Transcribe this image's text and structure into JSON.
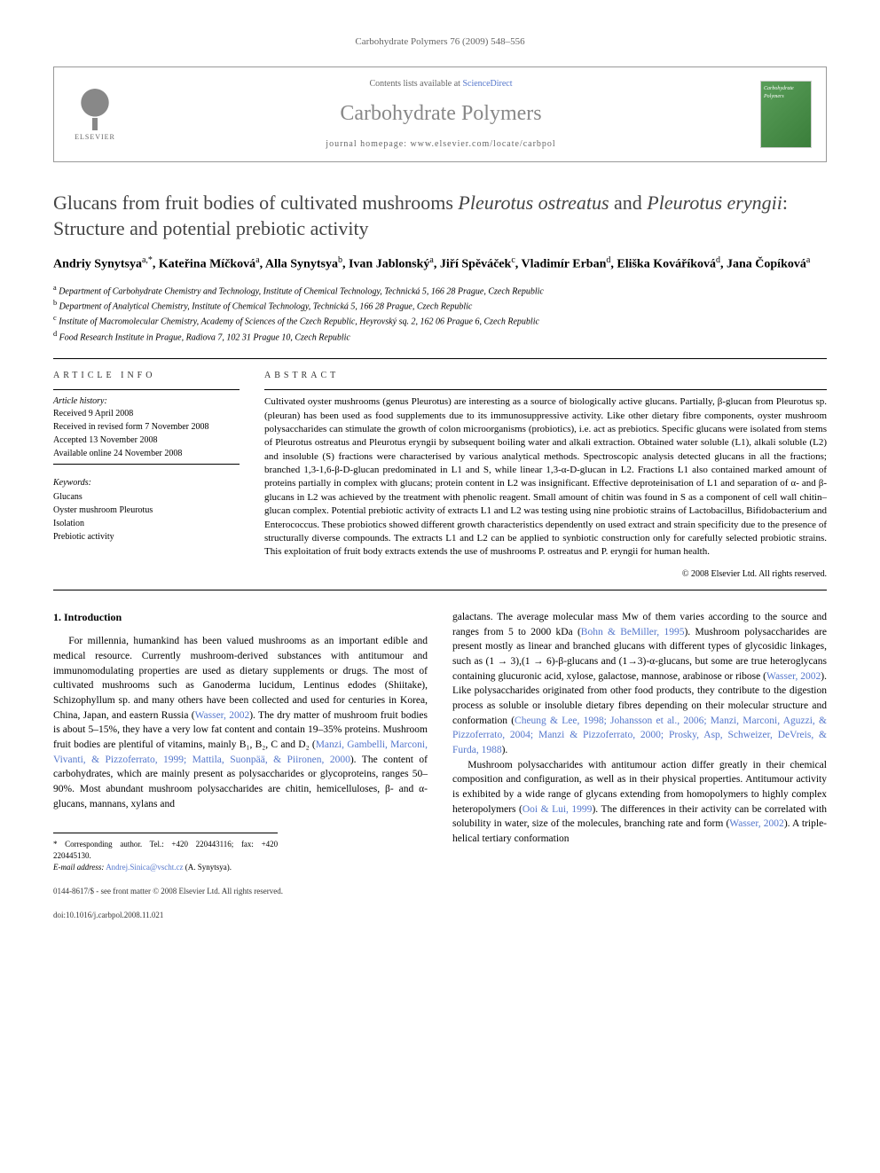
{
  "journal_header": "Carbohydrate Polymers 76 (2009) 548–556",
  "header": {
    "contents_prefix": "Contents lists available at ",
    "contents_link": "ScienceDirect",
    "journal_name": "Carbohydrate Polymers",
    "homepage_prefix": "journal homepage: ",
    "homepage_url": "www.elsevier.com/locate/carbpol",
    "publisher": "ELSEVIER"
  },
  "title_parts": {
    "pre1": "Glucans from fruit bodies of cultivated mushrooms ",
    "em1": "Pleurotus ostreatus",
    "mid": " and ",
    "em2": "Pleurotus eryngii",
    "post": ": Structure and potential prebiotic activity"
  },
  "authors_html": "Andriy Synytsya<sup>a,*</sup>, Kateřina Míčková<sup>a</sup>, Alla Synytsya<sup>b</sup>, Ivan Jablonský<sup>a</sup>, Jiří Spěváček<sup>c</sup>, Vladimír Erban<sup>d</sup>, Eliška Kováříková<sup>d</sup>, Jana Čopíková<sup>a</sup>",
  "affiliations": [
    "a Department of Carbohydrate Chemistry and Technology, Institute of Chemical Technology, Technická 5, 166 28 Prague, Czech Republic",
    "b Department of Analytical Chemistry, Institute of Chemical Technology, Technická 5, 166 28 Prague, Czech Republic",
    "c Institute of Macromolecular Chemistry, Academy of Sciences of the Czech Republic, Heyrovský sq. 2, 162 06 Prague 6, Czech Republic",
    "d Food Research Institute in Prague, Radiova 7, 102 31 Prague 10, Czech Republic"
  ],
  "article_info": {
    "heading": "ARTICLE INFO",
    "history_label": "Article history:",
    "history": [
      "Received 9 April 2008",
      "Received in revised form 7 November 2008",
      "Accepted 13 November 2008",
      "Available online 24 November 2008"
    ],
    "keywords_label": "Keywords:",
    "keywords": [
      "Glucans",
      "Oyster mushroom Pleurotus",
      "Isolation",
      "Prebiotic activity"
    ]
  },
  "abstract": {
    "heading": "ABSTRACT",
    "text": "Cultivated oyster mushrooms (genus Pleurotus) are interesting as a source of biologically active glucans. Partially, β-glucan from Pleurotus sp. (pleuran) has been used as food supplements due to its immunosuppressive activity. Like other dietary fibre components, oyster mushroom polysaccharides can stimulate the growth of colon microorganisms (probiotics), i.e. act as prebiotics. Specific glucans were isolated from stems of Pleurotus ostreatus and Pleurotus eryngii by subsequent boiling water and alkali extraction. Obtained water soluble (L1), alkali soluble (L2) and insoluble (S) fractions were characterised by various analytical methods. Spectroscopic analysis detected glucans in all the fractions; branched 1,3-1,6-β-D-glucan predominated in L1 and S, while linear 1,3-α-D-glucan in L2. Fractions L1 also contained marked amount of proteins partially in complex with glucans; protein content in L2 was insignificant. Effective deproteinisation of L1 and separation of α- and β-glucans in L2 was achieved by the treatment with phenolic reagent. Small amount of chitin was found in S as a component of cell wall chitin–glucan complex. Potential prebiotic activity of extracts L1 and L2 was testing using nine probiotic strains of Lactobacillus, Bifidobacterium and Enterococcus. These probiotics showed different growth characteristics dependently on used extract and strain specificity due to the presence of structurally diverse compounds. The extracts L1 and L2 can be applied to synbiotic construction only for carefully selected probiotic strains. This exploitation of fruit body extracts extends the use of mushrooms P. ostreatus and P. eryngii for human health.",
    "copyright": "© 2008 Elsevier Ltd. All rights reserved."
  },
  "body": {
    "section_heading": "1. Introduction",
    "col1_p1": "For millennia, humankind has been valued mushrooms as an important edible and medical resource. Currently mushroom-derived substances with antitumour and immunomodulating properties are used as dietary supplements or drugs. The most of cultivated mushrooms such as Ganoderma lucidum, Lentinus edodes (Shiitake), Schizophyllum sp. and many others have been collected and used for centuries in Korea, China, Japan, and eastern Russia (",
    "col1_ref1": "Wasser, 2002",
    "col1_p1b": "). The dry matter of mushroom fruit bodies is about 5–15%, they have a very low fat content and contain 19–35% proteins. Mushroom fruit bodies are plentiful of vitamins, mainly B₁, B₂, C and D₂ (",
    "col1_ref2": "Manzi, Gambelli, Marconi, Vivanti, & Pizzoferrato, 1999; Mattila, Suonpää, & Piironen, 2000",
    "col1_p1c": "). The content of carbohydrates, which are mainly present as polysaccharides or glycoproteins, ranges 50–90%. Most abundant mushroom polysaccharides are chitin, hemicelluloses, β- and α-glucans, mannans, xylans and",
    "col2_p1": "galactans. The average molecular mass Mw of them varies according to the source and ranges from 5 to 2000 kDa (",
    "col2_ref1": "Bohn & BeMiller, 1995",
    "col2_p1b": "). Mushroom polysaccharides are present mostly as linear and branched glucans with different types of glycosidic linkages, such as (1 → 3),(1 → 6)-β-glucans and (1→3)-α-glucans, but some are true heteroglycans containing glucuronic acid, xylose, galactose, mannose, arabinose or ribose (",
    "col2_ref2": "Wasser, 2002",
    "col2_p1c": "). Like polysaccharides originated from other food products, they contribute to the digestion process as soluble or insoluble dietary fibres depending on their molecular structure and conformation (",
    "col2_ref3": "Cheung & Lee, 1998; Johansson et al., 2006; Manzi, Marconi, Aguzzi, & Pizzoferrato, 2004; Manzi & Pizzoferrato, 2000; Prosky, Asp, Schweizer, DeVreis, & Furda, 1988",
    "col2_p1d": ").",
    "col2_p2": "Mushroom polysaccharides with antitumour action differ greatly in their chemical composition and configuration, as well as in their physical properties. Antitumour activity is exhibited by a wide range of glycans extending from homopolymers to highly complex heteropolymers (",
    "col2_ref4": "Ooi & Lui, 1999",
    "col2_p2b": "). The differences in their activity can be correlated with solubility in water, size of the molecules, branching rate and form (",
    "col2_ref5": "Wasser, 2002",
    "col2_p2c": "). A triple-helical tertiary conformation"
  },
  "corresponding": {
    "line1": "* Corresponding author. Tel.: +420 220443116; fax: +420 220445130.",
    "email_label": "E-mail address:",
    "email": "Andrej.Sinica@vscht.cz",
    "email_suffix": "(A. Synytsya)."
  },
  "footer": {
    "line1": "0144-8617/$ - see front matter © 2008 Elsevier Ltd. All rights reserved.",
    "line2": "doi:10.1016/j.carbpol.2008.11.021"
  },
  "colors": {
    "link": "#5577cc",
    "muted": "#666666",
    "text": "#000000",
    "journal_name": "#888888"
  }
}
